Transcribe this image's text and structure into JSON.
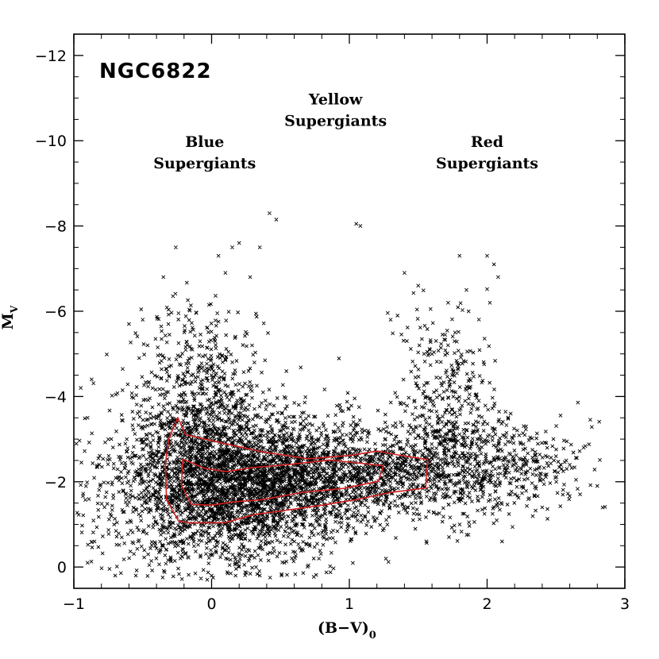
{
  "chart_data": {
    "type": "scatter",
    "title": "NGC6822",
    "xlabel": "(B−V)",
    "xlabel_subscript": "0",
    "ylabel": "M",
    "ylabel_subscript": "V",
    "xlim": [
      -1,
      3
    ],
    "ylim": [
      0.5,
      -12.5
    ],
    "y_inverted": true,
    "x_ticks": [
      -1,
      0,
      1,
      2,
      3
    ],
    "x_tick_labels": [
      "−1",
      "0",
      "1",
      "2",
      "3"
    ],
    "y_ticks": [
      -12,
      -10,
      -8,
      -6,
      -4,
      -2,
      0
    ],
    "y_tick_labels": [
      "−12",
      "−10",
      "−8",
      "−6",
      "−4",
      "−2",
      "0"
    ],
    "grid": false,
    "annotations": [
      {
        "line1": "Blue",
        "line2": "Supergiants",
        "x": -0.05,
        "y": -9.35
      },
      {
        "line1": "Yellow",
        "line2": "Supergiants",
        "x": 0.9,
        "y": -10.35
      },
      {
        "line1": "Red",
        "line2": "Supergiants",
        "x": 2.0,
        "y": -9.35
      }
    ],
    "colors": {
      "points": "#000000",
      "contour": "#d42020"
    },
    "series": [
      {
        "marker": "x",
        "description_clusters": [
          {
            "x_center": 0.15,
            "y_center": -1.9,
            "x_spread": 0.45,
            "y_spread": 0.9,
            "weight": 0.45
          },
          {
            "x_center": -0.1,
            "y_center": -3.6,
            "x_spread": 0.22,
            "y_spread": 1.2,
            "weight": 0.12
          },
          {
            "x_center": 1.0,
            "y_center": -2.2,
            "x_spread": 0.55,
            "y_spread": 0.55,
            "weight": 0.25
          },
          {
            "x_center": 1.7,
            "y_center": -3.7,
            "x_spread": 0.18,
            "y_spread": 1.1,
            "weight": 0.06
          },
          {
            "x_center": 2.1,
            "y_center": -2.4,
            "x_spread": 0.3,
            "y_spread": 0.5,
            "weight": 0.06
          }
        ],
        "bright_points": [
          [
            0.42,
            -8.3
          ],
          [
            0.47,
            -8.15
          ],
          [
            1.05,
            -8.05
          ],
          [
            1.08,
            -8.0
          ],
          [
            -0.26,
            -7.5
          ],
          [
            0.05,
            -7.3
          ],
          [
            0.15,
            -7.5
          ],
          [
            0.2,
            -7.6
          ],
          [
            0.35,
            -7.5
          ],
          [
            1.4,
            -6.9
          ],
          [
            1.8,
            -7.3
          ],
          [
            2.0,
            -7.3
          ],
          [
            2.05,
            -7.1
          ],
          [
            2.08,
            -6.8
          ],
          [
            -0.35,
            -6.8
          ],
          [
            0.1,
            -6.9
          ],
          [
            0.28,
            -6.8
          ],
          [
            1.5,
            -6.6
          ],
          [
            1.85,
            -6.5
          ],
          [
            2.02,
            -6.2
          ],
          [
            -0.6,
            -5.7
          ],
          [
            -0.5,
            -5.8
          ],
          [
            1.35,
            -5.9
          ],
          [
            1.3,
            -5.8
          ],
          [
            -0.95,
            -4.2
          ],
          [
            -0.9,
            -3.5
          ],
          [
            2.35,
            -2.7
          ],
          [
            2.5,
            -2.6
          ],
          [
            2.6,
            -2.4
          ],
          [
            2.8,
            -1.9
          ],
          [
            2.55,
            -1.7
          ],
          [
            2.4,
            -1.4
          ],
          [
            -0.85,
            -0.6
          ],
          [
            -0.9,
            -0.1
          ],
          [
            -0.7,
            0.2
          ],
          [
            -0.55,
            0.2
          ],
          [
            -0.35,
            -0.5
          ],
          [
            0.0,
            0.2
          ],
          [
            0.35,
            0.2
          ]
        ]
      }
    ],
    "contours": [
      {
        "level": "outer",
        "points": [
          [
            -0.25,
            -3.5
          ],
          [
            -0.18,
            -3.1
          ],
          [
            0.05,
            -2.95
          ],
          [
            0.35,
            -2.7
          ],
          [
            0.7,
            -2.55
          ],
          [
            1.0,
            -2.65
          ],
          [
            1.2,
            -2.75
          ],
          [
            1.35,
            -2.65
          ],
          [
            1.58,
            -2.55
          ],
          [
            1.57,
            -2.2
          ],
          [
            1.55,
            -1.85
          ],
          [
            1.3,
            -1.75
          ],
          [
            1.05,
            -1.6
          ],
          [
            0.8,
            -1.45
          ],
          [
            0.55,
            -1.35
          ],
          [
            0.3,
            -1.2
          ],
          [
            0.1,
            -1.05
          ],
          [
            -0.15,
            -1.0
          ],
          [
            -0.25,
            -1.1
          ],
          [
            -0.33,
            -1.6
          ],
          [
            -0.33,
            -2.4
          ],
          [
            -0.3,
            -3.0
          ]
        ]
      },
      {
        "level": "inner",
        "points": [
          [
            -0.2,
            -2.55
          ],
          [
            -0.05,
            -2.3
          ],
          [
            0.1,
            -2.25
          ],
          [
            0.3,
            -2.3
          ],
          [
            0.55,
            -2.4
          ],
          [
            0.85,
            -2.5
          ],
          [
            1.05,
            -2.45
          ],
          [
            1.25,
            -2.35
          ],
          [
            1.2,
            -2.0
          ],
          [
            0.95,
            -1.85
          ],
          [
            0.65,
            -1.75
          ],
          [
            0.35,
            -1.6
          ],
          [
            0.15,
            -1.5
          ],
          [
            0.0,
            -1.45
          ],
          [
            -0.15,
            -1.5
          ],
          [
            -0.22,
            -1.9
          ]
        ]
      }
    ]
  }
}
